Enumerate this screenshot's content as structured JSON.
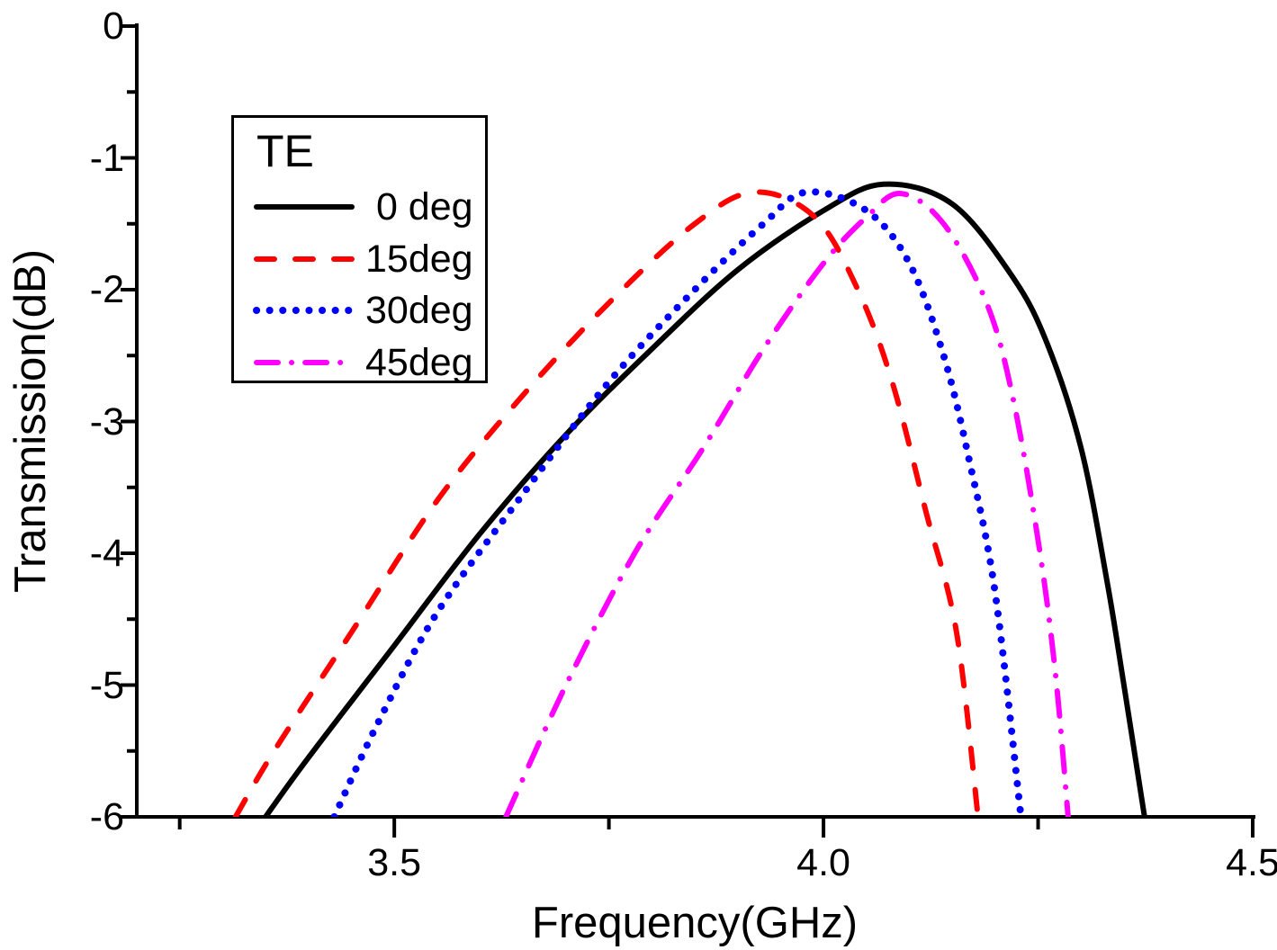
{
  "chart_data": {
    "type": "line",
    "title": "",
    "xlabel": "Frequency(GHz)",
    "ylabel": "Transmission(dB)",
    "xlim": [
      3.2,
      4.5
    ],
    "ylim": [
      -6,
      0
    ],
    "x_ticks": [
      3.5,
      4.0,
      4.5
    ],
    "x_tick_labels": [
      "3.5",
      "4.0",
      "4.5"
    ],
    "x_minor_ticks": [
      3.25,
      3.75,
      4.25
    ],
    "y_ticks": [
      0,
      -1,
      -2,
      -3,
      -4,
      -5,
      -6
    ],
    "y_tick_labels": [
      "0",
      "-1",
      "-2",
      "-3",
      "-4",
      "-5",
      "-6"
    ],
    "y_minor_ticks": [
      -0.5,
      -1.5,
      -2.5,
      -3.5,
      -4.5,
      -5.5
    ],
    "grid": false,
    "legend": {
      "title": "TE",
      "position": "top-left"
    },
    "axis_color": "#000000",
    "series": [
      {
        "name": " 0 deg",
        "color": "#000000",
        "style": "solid",
        "peak": {
          "x": 4.07,
          "y": -1.2
        },
        "points": [
          [
            3.35,
            -6.0
          ],
          [
            3.4,
            -5.55
          ],
          [
            3.5,
            -4.7
          ],
          [
            3.6,
            -3.85
          ],
          [
            3.7,
            -3.1
          ],
          [
            3.8,
            -2.45
          ],
          [
            3.9,
            -1.85
          ],
          [
            4.0,
            -1.4
          ],
          [
            4.07,
            -1.2
          ],
          [
            4.15,
            -1.35
          ],
          [
            4.22,
            -1.9
          ],
          [
            4.26,
            -2.4
          ],
          [
            4.3,
            -3.2
          ],
          [
            4.33,
            -4.2
          ],
          [
            4.35,
            -5.0
          ],
          [
            4.374,
            -6.0
          ]
        ]
      },
      {
        "name": "15deg",
        "color": "#FF0000",
        "style": "dashed",
        "peak": {
          "x": 3.92,
          "y": -1.26
        },
        "points": [
          [
            3.315,
            -6.0
          ],
          [
            3.36,
            -5.5
          ],
          [
            3.45,
            -4.6
          ],
          [
            3.55,
            -3.6
          ],
          [
            3.65,
            -2.8
          ],
          [
            3.75,
            -2.1
          ],
          [
            3.85,
            -1.5
          ],
          [
            3.92,
            -1.26
          ],
          [
            3.99,
            -1.45
          ],
          [
            4.04,
            -2.0
          ],
          [
            4.08,
            -2.7
          ],
          [
            4.12,
            -3.7
          ],
          [
            4.155,
            -4.6
          ],
          [
            4.18,
            -6.0
          ]
        ]
      },
      {
        "name": "30deg",
        "color": "#0000FF",
        "style": "dotted",
        "peak": {
          "x": 3.98,
          "y": -1.26
        },
        "points": [
          [
            3.43,
            -6.0
          ],
          [
            3.48,
            -5.3
          ],
          [
            3.55,
            -4.45
          ],
          [
            3.65,
            -3.55
          ],
          [
            3.75,
            -2.7
          ],
          [
            3.85,
            -2.0
          ],
          [
            3.93,
            -1.5
          ],
          [
            3.98,
            -1.26
          ],
          [
            4.05,
            -1.4
          ],
          [
            4.1,
            -1.8
          ],
          [
            4.14,
            -2.5
          ],
          [
            4.17,
            -3.3
          ],
          [
            4.2,
            -4.3
          ],
          [
            4.23,
            -6.0
          ]
        ]
      },
      {
        "name": "45deg",
        "color": "#FF00FF",
        "style": "dashdot",
        "peak": {
          "x": 4.09,
          "y": -1.27
        },
        "points": [
          [
            3.63,
            -6.0
          ],
          [
            3.7,
            -5.0
          ],
          [
            3.78,
            -4.0
          ],
          [
            3.86,
            -3.2
          ],
          [
            3.93,
            -2.45
          ],
          [
            4.0,
            -1.8
          ],
          [
            4.05,
            -1.45
          ],
          [
            4.09,
            -1.27
          ],
          [
            4.14,
            -1.5
          ],
          [
            4.19,
            -2.1
          ],
          [
            4.22,
            -2.8
          ],
          [
            4.25,
            -3.9
          ],
          [
            4.27,
            -4.9
          ],
          [
            4.285,
            -6.0
          ]
        ]
      }
    ]
  }
}
